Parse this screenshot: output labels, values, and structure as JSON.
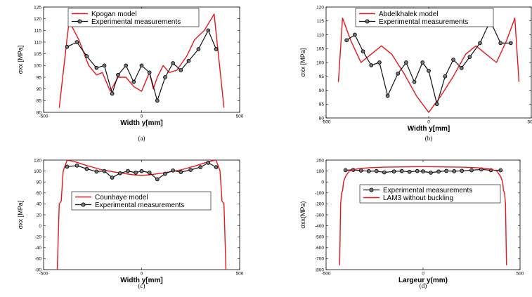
{
  "colors": {
    "model": "#e8161c",
    "experiment": "#111111"
  },
  "chart_data": [
    {
      "type": "line",
      "panel": "(a)",
      "xlabel": "Width y[mm]",
      "ylabel": "σxx [MPa]",
      "xlim": [
        -500,
        500
      ],
      "ylim": [
        80,
        125
      ],
      "xticks": [
        -500,
        0,
        500
      ],
      "yticks": [
        80,
        85,
        90,
        95,
        100,
        105,
        110,
        115,
        120,
        125
      ],
      "legend_position": "top-left",
      "series": [
        {
          "name": "Kpogan model",
          "style": "red-line",
          "x": [
            -420,
            -370,
            -320,
            -270,
            -230,
            -200,
            -160,
            -120,
            -80,
            -40,
            0,
            0,
            40,
            60,
            80,
            110,
            140,
            180,
            230,
            270,
            320,
            370,
            420
          ],
          "y": [
            82,
            119,
            111,
            100,
            96,
            97,
            89,
            95,
            95,
            91,
            89,
            89,
            97,
            90,
            95,
            100,
            97,
            98,
            104,
            111,
            115,
            122,
            82
          ]
        },
        {
          "name": "Experimental measurements",
          "style": "black-line-circles",
          "x": [
            -380,
            -330,
            -280,
            -230,
            -190,
            -150,
            -120,
            -80,
            -40,
            0,
            40,
            80,
            120,
            160,
            200,
            240,
            290,
            340,
            380
          ],
          "y": [
            108,
            110,
            104,
            99,
            100,
            88,
            96,
            100,
            93,
            100,
            97,
            85,
            95,
            101,
            98,
            102,
            107,
            115,
            107
          ]
        }
      ]
    },
    {
      "type": "line",
      "panel": "(b)",
      "xlabel": "Width y[mm]",
      "ylabel": "σxx [MPa]",
      "xlim": [
        -500,
        500
      ],
      "ylim": [
        80,
        120
      ],
      "xticks": [
        -500,
        0,
        500
      ],
      "yticks": [
        80,
        85,
        90,
        95,
        100,
        105,
        110,
        115,
        120
      ],
      "legend_position": "top-left",
      "series": [
        {
          "name": "Abdelkhalek model",
          "style": "red-line",
          "x": [
            -440,
            -420,
            -380,
            -330,
            -280,
            -230,
            -180,
            -120,
            -60,
            0,
            60,
            120,
            180,
            230,
            280,
            330,
            380,
            420,
            440
          ],
          "y": [
            93,
            116,
            108,
            100,
            103,
            106,
            103,
            96,
            88,
            82,
            88,
            95,
            103,
            106,
            103,
            100,
            108,
            116,
            93
          ]
        },
        {
          "name": "Experimental measurements",
          "style": "black-line-circles",
          "x": [
            -400,
            -360,
            -320,
            -280,
            -240,
            -200,
            -150,
            -110,
            -70,
            -30,
            0,
            40,
            80,
            120,
            160,
            200,
            250,
            300,
            350,
            400
          ],
          "y": [
            108,
            110,
            104,
            99,
            100,
            88,
            96,
            100,
            93,
            100,
            97,
            85,
            95,
            101,
            98,
            102,
            107,
            115,
            107,
            107
          ]
        }
      ]
    },
    {
      "type": "line",
      "panel": "(c)",
      "xlabel": "Width y[mm]",
      "ylabel": "σxx [MPa]",
      "xlim": [
        -500,
        500
      ],
      "ylim": [
        -80,
        120
      ],
      "xticks": [
        -500,
        0,
        500
      ],
      "yticks": [
        -80,
        -60,
        -40,
        -20,
        0,
        20,
        40,
        60,
        80,
        100,
        120
      ],
      "legend_position": "center",
      "series": [
        {
          "name": "Counhaye model",
          "style": "red-line",
          "x": [
            -430,
            -420,
            -410,
            -400,
            -380,
            -340,
            -280,
            -200,
            -120,
            -40,
            0,
            40,
            120,
            200,
            280,
            340,
            380,
            400,
            410,
            420,
            430
          ],
          "y": [
            -80,
            40,
            45,
            100,
            120,
            117,
            110,
            102,
            97,
            93,
            92,
            93,
            97,
            102,
            110,
            117,
            120,
            100,
            45,
            40,
            -80
          ]
        },
        {
          "name": "Experimental measurements",
          "style": "black-line-circles",
          "x": [
            -380,
            -330,
            -280,
            -230,
            -190,
            -150,
            -110,
            -70,
            -30,
            0,
            40,
            80,
            120,
            160,
            200,
            250,
            300,
            340,
            380
          ],
          "y": [
            108,
            110,
            104,
            99,
            100,
            88,
            96,
            100,
            97,
            100,
            97,
            85,
            95,
            101,
            98,
            102,
            107,
            115,
            107
          ]
        }
      ]
    },
    {
      "type": "line",
      "panel": "(d)",
      "xlabel": "Largeur y(mm)",
      "ylabel": "σxx(MPa)",
      "xlim": [
        -500,
        500
      ],
      "ylim": [
        -800,
        200
      ],
      "xticks": [
        -500,
        0,
        500
      ],
      "yticks": [
        -800,
        -700,
        -600,
        -500,
        -400,
        -300,
        -200,
        -100,
        0,
        100,
        200
      ],
      "legend_position": "center",
      "series": [
        {
          "name": "Experimental measurements",
          "style": "black-line-circles",
          "x": [
            -400,
            -360,
            -320,
            -280,
            -240,
            -200,
            -150,
            -110,
            -70,
            -30,
            0,
            40,
            80,
            120,
            160,
            200,
            250,
            300,
            350,
            400
          ],
          "y": [
            108,
            110,
            104,
            99,
            100,
            88,
            96,
            100,
            93,
            100,
            97,
            85,
            95,
            101,
            98,
            102,
            107,
            115,
            107,
            107
          ]
        },
        {
          "name": "LAM3 without buckling",
          "style": "red-line",
          "x": [
            -430,
            -425,
            -420,
            -415,
            -410,
            -400,
            -380,
            -340,
            -280,
            -200,
            -100,
            0,
            100,
            200,
            280,
            340,
            380,
            400,
            410,
            415,
            420,
            425,
            430
          ],
          "y": [
            -760,
            -200,
            -100,
            -80,
            0,
            50,
            100,
            120,
            130,
            135,
            138,
            140,
            138,
            135,
            130,
            120,
            100,
            50,
            0,
            -80,
            -100,
            -200,
            -760
          ]
        }
      ]
    }
  ]
}
